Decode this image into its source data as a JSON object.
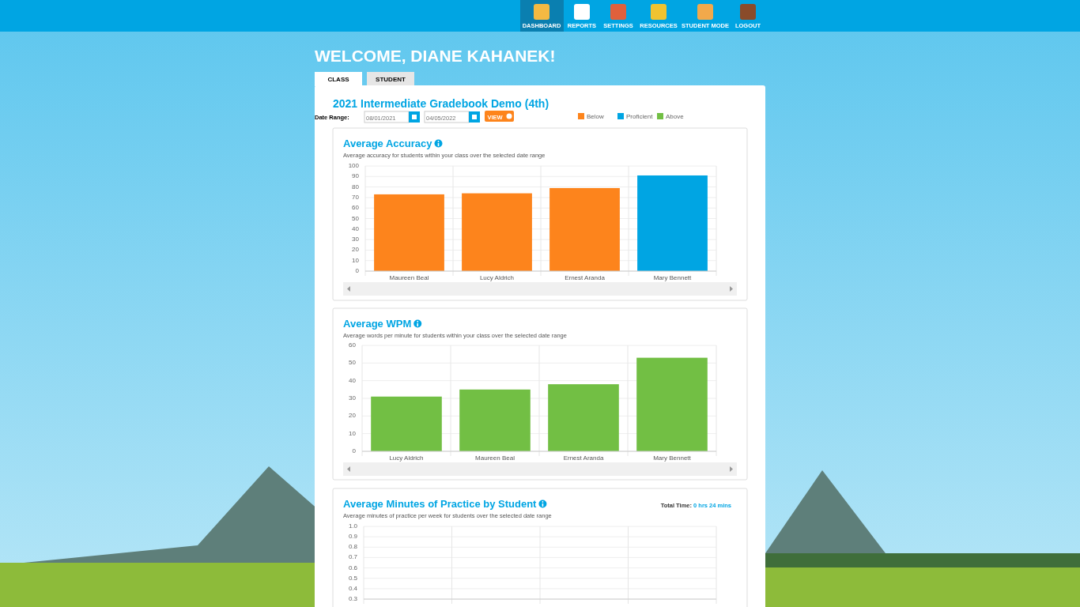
{
  "chart_data": [
    {
      "type": "other",
      "title": "2021 Intermediate Gradebook Demo (4th)",
      "annotations": [
        "DASHBOARD",
        "REPORTS",
        "SETTINGS",
        "RESOURCES",
        "STUDENT MODE",
        "LOGOUT",
        "WELCOME, DIANE KAHANEK!",
        "CLASS",
        "STUDENT",
        "Date Range:",
        "08/01/2021",
        "04/05/2022",
        "VIEW"
      ]
    },
    {
      "type": "bar",
      "title": "Average Accuracy",
      "subtitle": "Average accuracy for students within your class over the selected date range",
      "categories": [
        "Maureen Beal",
        "Lucy Aldrich",
        "Ernest Aranda",
        "Mary Bennett"
      ],
      "stacked": true,
      "legend": "top right",
      "grid": true,
      "ylim": [
        0,
        100
      ],
      "yticks": [
        0,
        10,
        20,
        30,
        40,
        50,
        60,
        70,
        80,
        90,
        100
      ],
      "series": [
        {
          "name": "Below",
          "color": "#fd841c",
          "values": [
            73,
            74,
            79,
            null
          ]
        },
        {
          "name": "Proficient",
          "color": "#00a5e3",
          "values": [
            null,
            null,
            null,
            91
          ]
        },
        {
          "name": "Above",
          "color": "#72bf44",
          "values": [
            null,
            null,
            null,
            null
          ]
        }
      ]
    },
    {
      "type": "bar",
      "title": "Average WPM",
      "subtitle": "Average words per minute for students within your class over the selected date range",
      "categories": [
        "Lucy Aldrich",
        "Maureen Beal",
        "Ernest Aranda",
        "Mary Bennett"
      ],
      "values": [
        31,
        35,
        38,
        53
      ],
      "color": "#72bf44",
      "grid": true,
      "ylim": [
        0,
        60
      ],
      "yticks": [
        0,
        10,
        20,
        30,
        40,
        50,
        60
      ]
    },
    {
      "type": "bar",
      "title": "Average Minutes of Practice by Student",
      "subtitle": "Average minutes of practice per week for students over the selected date range",
      "annotations": [
        "Total Time: 0 hrs 24 mins"
      ],
      "categories": [
        null,
        null,
        null,
        null
      ],
      "values": [
        null,
        null,
        null,
        null
      ],
      "color": "#00a5e3",
      "grid": true,
      "ylim": [
        0.3,
        1
      ],
      "yticks": [
        0.3,
        0.4,
        0.5,
        0.6,
        0.7,
        0.8,
        0.9,
        {
          "value": 1,
          "label": "1.0"
        }
      ]
    }
  ]
}
